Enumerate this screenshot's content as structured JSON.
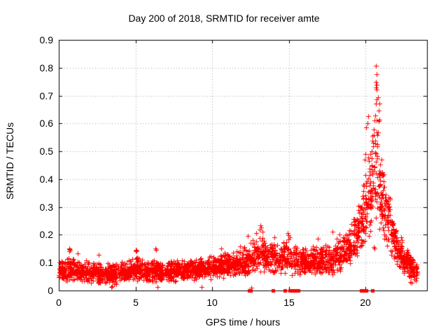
{
  "page": {
    "background": "#ffffff",
    "text_color": "#000000"
  },
  "chart_data": {
    "type": "scatter",
    "title": "Day 200 of 2018, SRMTID for receiver amte",
    "xlabel": "GPS time / hours",
    "ylabel": "SRMTID / TECUs",
    "xlim": [
      0,
      24
    ],
    "ylim": [
      0,
      0.9
    ],
    "xticks": [
      0,
      5,
      10,
      15,
      20
    ],
    "yticks": [
      0,
      0.1,
      0.2,
      0.3,
      0.4,
      0.5,
      0.6,
      0.7,
      0.8,
      0.9
    ],
    "grid": true,
    "legend": null,
    "marker": "plus",
    "marker_color": "#ff0000",
    "grid_color": "#a8a8a8",
    "border_color": "#000000",
    "series_name": "SRMTID",
    "density_bands": [
      [
        0.0,
        0.5,
        0.03,
        0.12,
        60
      ],
      [
        0.5,
        1.0,
        0.03,
        0.13,
        60
      ],
      [
        1.0,
        1.5,
        0.03,
        0.11,
        60
      ],
      [
        1.5,
        2.0,
        0.025,
        0.11,
        60
      ],
      [
        2.0,
        2.5,
        0.025,
        0.105,
        60
      ],
      [
        2.5,
        3.0,
        0.02,
        0.1,
        60
      ],
      [
        3.0,
        3.5,
        0.02,
        0.1,
        60
      ],
      [
        3.5,
        4.0,
        0.02,
        0.105,
        60
      ],
      [
        4.0,
        4.5,
        0.03,
        0.11,
        60
      ],
      [
        4.5,
        5.0,
        0.03,
        0.12,
        60
      ],
      [
        5.0,
        5.5,
        0.03,
        0.13,
        60
      ],
      [
        5.5,
        6.0,
        0.025,
        0.11,
        60
      ],
      [
        6.0,
        6.5,
        0.025,
        0.12,
        60
      ],
      [
        6.5,
        7.0,
        0.03,
        0.11,
        60
      ],
      [
        7.0,
        7.5,
        0.03,
        0.115,
        60
      ],
      [
        7.5,
        8.0,
        0.03,
        0.11,
        60
      ],
      [
        8.0,
        8.5,
        0.035,
        0.115,
        60
      ],
      [
        8.5,
        9.0,
        0.035,
        0.12,
        60
      ],
      [
        9.0,
        9.5,
        0.04,
        0.12,
        60
      ],
      [
        9.5,
        10.0,
        0.04,
        0.125,
        60
      ],
      [
        10.0,
        10.5,
        0.04,
        0.13,
        60
      ],
      [
        10.5,
        11.0,
        0.045,
        0.14,
        60
      ],
      [
        11.0,
        11.5,
        0.05,
        0.14,
        60
      ],
      [
        11.5,
        12.0,
        0.05,
        0.15,
        60
      ],
      [
        12.0,
        12.5,
        0.05,
        0.17,
        55
      ],
      [
        12.5,
        13.0,
        0.05,
        0.19,
        55
      ],
      [
        13.0,
        13.5,
        0.06,
        0.21,
        55
      ],
      [
        13.5,
        14.0,
        0.06,
        0.18,
        55
      ],
      [
        14.0,
        14.5,
        0.06,
        0.17,
        50
      ],
      [
        14.5,
        15.0,
        0.06,
        0.19,
        55
      ],
      [
        15.0,
        15.5,
        0.05,
        0.17,
        45
      ],
      [
        15.5,
        16.0,
        0.05,
        0.16,
        55
      ],
      [
        16.0,
        16.5,
        0.05,
        0.16,
        60
      ],
      [
        16.5,
        17.0,
        0.05,
        0.17,
        60
      ],
      [
        17.0,
        17.5,
        0.05,
        0.17,
        60
      ],
      [
        17.5,
        18.0,
        0.05,
        0.18,
        60
      ],
      [
        18.0,
        18.5,
        0.06,
        0.19,
        60
      ],
      [
        18.5,
        19.0,
        0.08,
        0.22,
        60
      ],
      [
        19.0,
        19.5,
        0.1,
        0.28,
        60
      ],
      [
        19.5,
        19.8,
        0.15,
        0.34,
        40
      ],
      [
        19.8,
        20.1,
        0.15,
        0.45,
        40
      ],
      [
        20.1,
        20.4,
        0.18,
        0.55,
        40
      ],
      [
        20.4,
        20.7,
        0.22,
        0.62,
        35
      ],
      [
        20.7,
        20.9,
        0.25,
        0.7,
        22
      ],
      [
        20.9,
        21.2,
        0.2,
        0.46,
        45
      ],
      [
        21.2,
        21.6,
        0.14,
        0.38,
        50
      ],
      [
        21.6,
        22.0,
        0.11,
        0.28,
        55
      ],
      [
        22.0,
        22.4,
        0.08,
        0.2,
        60
      ],
      [
        22.4,
        22.8,
        0.06,
        0.16,
        60
      ],
      [
        22.8,
        23.1,
        0.04,
        0.13,
        50
      ],
      [
        23.1,
        23.35,
        0.03,
        0.11,
        25
      ]
    ],
    "notable_points": [
      [
        0.68,
        0.148
      ],
      [
        0.7,
        0.152
      ],
      [
        0.72,
        0.146
      ],
      [
        0.7,
        0.142
      ],
      [
        1.25,
        0.132
      ],
      [
        2.6,
        0.128
      ],
      [
        3.4,
        0.012
      ],
      [
        3.45,
        0.015
      ],
      [
        6.45,
        0.012
      ],
      [
        9.3,
        0.013
      ],
      [
        12.55,
        0.01
      ],
      [
        5.0,
        0.145
      ],
      [
        5.03,
        0.14
      ],
      [
        5.05,
        0.143
      ],
      [
        6.3,
        0.152
      ],
      [
        6.32,
        0.147
      ],
      [
        10.6,
        0.152
      ],
      [
        11.8,
        0.158
      ],
      [
        12.3,
        0.195
      ],
      [
        12.85,
        0.205
      ],
      [
        13.15,
        0.235
      ],
      [
        13.18,
        0.226
      ],
      [
        13.1,
        0.218
      ],
      [
        13.3,
        0.21
      ],
      [
        14.05,
        0.19
      ],
      [
        14.9,
        0.205
      ],
      [
        14.95,
        0.198
      ],
      [
        15.05,
        0.19
      ],
      [
        16.9,
        0.185
      ],
      [
        17.85,
        0.21
      ],
      [
        18.3,
        0.2
      ],
      [
        19.95,
        0.47
      ],
      [
        20.0,
        0.49
      ],
      [
        20.05,
        0.585
      ],
      [
        20.1,
        0.6
      ],
      [
        20.15,
        0.625
      ],
      [
        20.62,
        0.628
      ],
      [
        20.6,
        0.612
      ],
      [
        20.68,
        0.807
      ],
      [
        20.7,
        0.778
      ],
      [
        20.66,
        0.75
      ],
      [
        20.7,
        0.74
      ],
      [
        20.66,
        0.728
      ],
      [
        20.7,
        0.722
      ],
      [
        20.7,
        0.686
      ],
      [
        20.66,
        0.67
      ],
      [
        20.55,
        0.156
      ],
      [
        20.57,
        0.152
      ],
      [
        21.05,
        0.47
      ],
      [
        22.9,
        0.03
      ],
      [
        23.0,
        0.027
      ]
    ],
    "baseline_markers_hours": [
      12.42,
      12.5,
      13.97,
      14.75,
      15.05,
      15.3,
      15.38,
      15.46,
      15.54,
      15.6,
      19.7,
      19.76,
      19.97,
      20.05,
      20.42
    ]
  }
}
